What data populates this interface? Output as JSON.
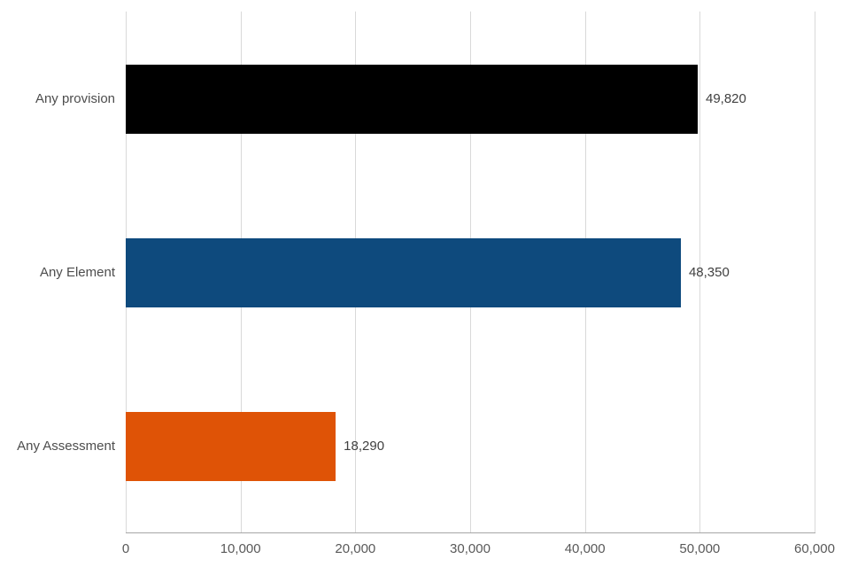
{
  "chart_data": {
    "type": "bar",
    "orientation": "horizontal",
    "title": "",
    "xlabel": "",
    "ylabel": "",
    "categories": [
      "Any provision",
      "Any Element",
      "Any Assessment"
    ],
    "values": [
      49820,
      48350,
      18290
    ],
    "value_labels": [
      "49,820",
      "48,350",
      "18,290"
    ],
    "bar_colors": [
      "#000000",
      "#0e4a7d",
      "#df5306"
    ],
    "xlim": [
      0,
      60000
    ],
    "x_ticks": [
      0,
      10000,
      20000,
      30000,
      40000,
      50000,
      60000
    ],
    "x_tick_labels": [
      "0",
      "10,000",
      "20,000",
      "30,000",
      "40,000",
      "50,000",
      "60,000"
    ],
    "grid": "vertical",
    "legend": "none"
  },
  "colors": {
    "background": "#ffffff",
    "gridline": "#d9d9d9",
    "axis_line": "#a6a6a6",
    "category_text": "#4d4d4d",
    "value_text": "#404040",
    "tick_text": "#595959"
  }
}
